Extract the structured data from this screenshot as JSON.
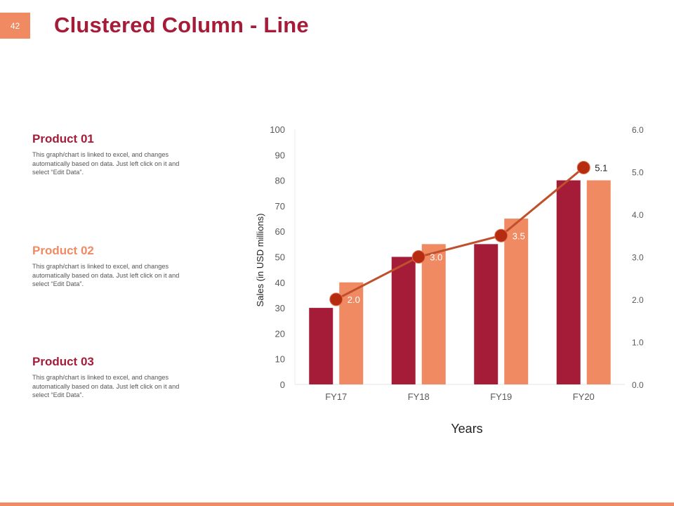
{
  "slide": {
    "page_number": "42",
    "title": "Clustered Column - Line"
  },
  "colors": {
    "accent": "#a51c38",
    "product2": "#f08a63",
    "line": "#c0502c",
    "marker": "#b52c10"
  },
  "products": [
    {
      "title": "Product 01",
      "description": "This graph/chart is linked to excel, and changes automatically based on data. Just left click on it and select “Edit Data”."
    },
    {
      "title": "Product 02",
      "description": "This graph/chart is linked to excel, and changes automatically based on data. Just left click on it and select “Edit Data”."
    },
    {
      "title": "Product 03",
      "description": "This graph/chart is linked to excel, and changes automatically based on data. Just left click on it and select “Edit Data”."
    }
  ],
  "chart_data": {
    "type": "bar",
    "categories": [
      "FY17",
      "FY18",
      "FY19",
      "FY20"
    ],
    "series": [
      {
        "name": "Product 01",
        "type": "bar",
        "axis": "left",
        "values": [
          30,
          50,
          55,
          80
        ]
      },
      {
        "name": "Product 02",
        "type": "bar",
        "axis": "left",
        "values": [
          40,
          55,
          65,
          80
        ]
      },
      {
        "name": "Product 03",
        "type": "line",
        "axis": "right",
        "values": [
          2.0,
          3.0,
          3.5,
          5.1
        ],
        "labels": [
          "2.0",
          "3.0",
          "3.5",
          "5.1"
        ]
      }
    ],
    "xlabel": "Years",
    "ylabel": "Sales (in USD millions)",
    "ylim": [
      0,
      100
    ],
    "y_ticks": [
      "0",
      "10",
      "20",
      "30",
      "40",
      "50",
      "60",
      "70",
      "80",
      "90",
      "100"
    ],
    "y2lim": [
      0,
      6
    ],
    "y2_ticks": [
      "0.0",
      "1.0",
      "2.0",
      "3.0",
      "4.0",
      "5.0",
      "6.0"
    ],
    "grid": false
  }
}
